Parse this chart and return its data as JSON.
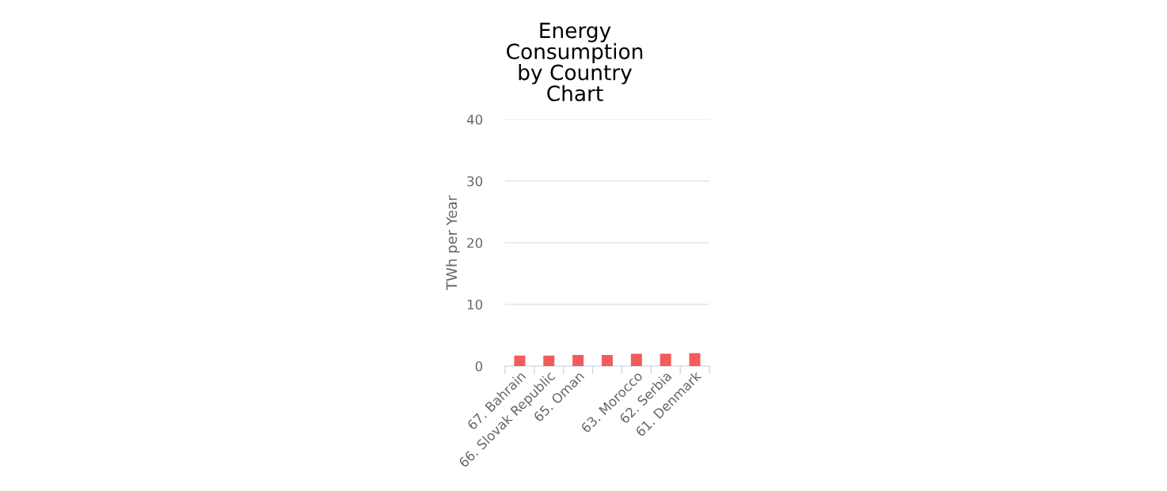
{
  "chart_data": {
    "type": "bar",
    "title": "Energy Consumption by Country Chart",
    "ylabel": "TWh per Year",
    "categories": [
      "67. Bahrain",
      "66. Slovak Republic",
      "65. Oman",
      null,
      "63. Morocco",
      "62. Serbia",
      "61. Denmark"
    ],
    "values": [
      1.7,
      1.7,
      1.8,
      1.8,
      2.0,
      2.0,
      2.1
    ],
    "color": "#f45b5b",
    "ylim": [
      0,
      40
    ],
    "yticks": [
      0,
      10,
      20,
      30,
      40
    ],
    "grid": "y",
    "legend": false
  }
}
